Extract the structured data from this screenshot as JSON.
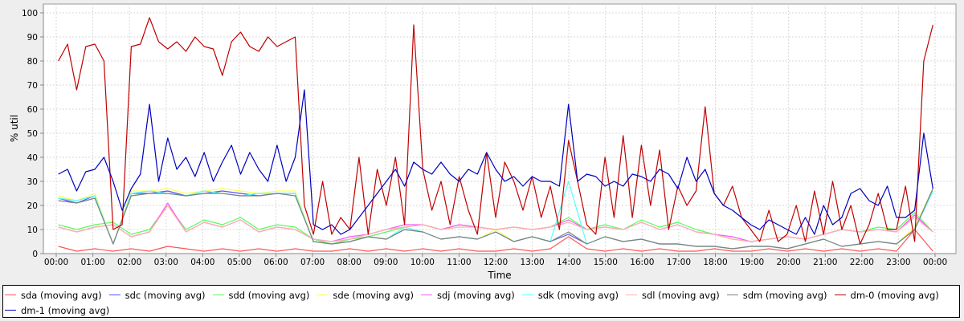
{
  "chart_data": {
    "type": "line",
    "title": "",
    "xlabel": "Time",
    "ylabel": "% util",
    "ylim": [
      0,
      100
    ],
    "yticks": [
      "0",
      "10",
      "20",
      "30",
      "40",
      "50",
      "60",
      "70",
      "80",
      "90",
      "100"
    ],
    "xticks": [
      "00:00",
      "01:00",
      "02:00",
      "03:00",
      "04:00",
      "05:00",
      "06:00",
      "07:00",
      "08:00",
      "09:00",
      "10:00",
      "11:00",
      "12:00",
      "13:00",
      "14:00",
      "15:00",
      "16:00",
      "17:00",
      "18:00",
      "19:00",
      "20:00",
      "21:00",
      "22:00",
      "23:00",
      "00:00"
    ],
    "x_range_hours": [
      0,
      24
    ],
    "grid": true,
    "legend_position": "bottom",
    "series": [
      {
        "name": "sda (moving avg)",
        "color": "#ff5555",
        "values": [
          3,
          1,
          2,
          1,
          2,
          1,
          3,
          2,
          1,
          2,
          1,
          2,
          1,
          2,
          1,
          1,
          2,
          1,
          2,
          1,
          2,
          1,
          2,
          1,
          1,
          2,
          1,
          2,
          7,
          2,
          1,
          2,
          1,
          2,
          1,
          1,
          2,
          1,
          1,
          2,
          1,
          2,
          1,
          2,
          1,
          2,
          1,
          10,
          1
        ]
      },
      {
        "name": "sdc (moving avg)",
        "color": "#5555ff",
        "values": [
          23,
          21,
          24,
          4,
          25,
          25,
          26,
          24,
          25,
          26,
          25,
          24,
          25,
          25,
          5,
          4,
          5,
          7,
          6,
          10,
          9,
          6,
          7,
          6,
          9,
          5,
          7,
          5,
          8,
          4,
          7,
          5,
          6,
          4,
          4,
          3,
          3,
          2,
          3,
          3,
          2,
          4,
          6,
          3,
          4,
          5,
          4,
          10,
          26
        ]
      },
      {
        "name": "sdd (moving avg)",
        "color": "#55ff55",
        "values": [
          12,
          10,
          12,
          13,
          8,
          10,
          20,
          10,
          14,
          12,
          15,
          10,
          12,
          11,
          6,
          4,
          6,
          7,
          9,
          11,
          12,
          10,
          12,
          11,
          10,
          11,
          10,
          11,
          15,
          10,
          12,
          10,
          14,
          11,
          13,
          10,
          8,
          6,
          5,
          6,
          7,
          6,
          8,
          10,
          9,
          11,
          10,
          17,
          9
        ]
      },
      {
        "name": "sde (moving avg)",
        "color": "#ffff55",
        "values": [
          24,
          22,
          25,
          4,
          26,
          26,
          27,
          25,
          26,
          27,
          26,
          25,
          26,
          26,
          5,
          4,
          5,
          7,
          6,
          11,
          9,
          6,
          7,
          6,
          10,
          5,
          7,
          5,
          9,
          4,
          7,
          5,
          6,
          4,
          4,
          3,
          3,
          2,
          3,
          3,
          2,
          4,
          6,
          3,
          4,
          5,
          4,
          11,
          27
        ]
      },
      {
        "name": "sdj (moving avg)",
        "color": "#ff55ff",
        "values": [
          11,
          9,
          11,
          12,
          7,
          9,
          21,
          9,
          13,
          11,
          14,
          9,
          11,
          10,
          6,
          5,
          7,
          8,
          10,
          12,
          12,
          10,
          12,
          11,
          10,
          11,
          10,
          11,
          14,
          10,
          11,
          10,
          13,
          10,
          12,
          9,
          8,
          7,
          5,
          6,
          7,
          6,
          8,
          10,
          9,
          10,
          9,
          16,
          9
        ]
      },
      {
        "name": "sdk (moving avg)",
        "color": "#55ffff",
        "values": [
          23,
          22,
          24,
          4,
          25,
          26,
          25,
          24,
          26,
          25,
          24,
          25,
          25,
          25,
          5,
          4,
          5,
          7,
          6,
          11,
          9,
          6,
          7,
          6,
          9,
          5,
          7,
          5,
          30,
          4,
          7,
          5,
          6,
          4,
          4,
          3,
          3,
          2,
          3,
          3,
          2,
          4,
          6,
          3,
          4,
          5,
          4,
          10,
          26
        ]
      },
      {
        "name": "sdl (moving avg)",
        "color": "#ffafaf",
        "values": [
          11,
          9,
          11,
          12,
          7,
          9,
          20,
          9,
          13,
          11,
          14,
          9,
          11,
          10,
          6,
          5,
          6,
          8,
          10,
          11,
          12,
          10,
          11,
          11,
          10,
          11,
          10,
          11,
          13,
          10,
          11,
          10,
          13,
          10,
          12,
          9,
          8,
          6,
          5,
          6,
          7,
          6,
          8,
          10,
          9,
          10,
          9,
          15,
          9
        ]
      },
      {
        "name": "sdm (moving avg)",
        "color": "#808080",
        "values": [
          22,
          21,
          23,
          4,
          24,
          25,
          25,
          24,
          25,
          25,
          24,
          24,
          25,
          24,
          5,
          4,
          5,
          7,
          6,
          10,
          9,
          6,
          7,
          6,
          9,
          5,
          7,
          5,
          9,
          4,
          7,
          5,
          6,
          4,
          4,
          3,
          3,
          2,
          3,
          3,
          2,
          4,
          6,
          3,
          4,
          5,
          4,
          10,
          27
        ]
      },
      {
        "name": "dm-0 (moving avg)",
        "color": "#c00000",
        "values": [
          80,
          87,
          68,
          86,
          87,
          80,
          10,
          12,
          86,
          87,
          98,
          88,
          85,
          88,
          84,
          90,
          86,
          85,
          74,
          88,
          92,
          86,
          84,
          90,
          86,
          88,
          90,
          20,
          8,
          30,
          8,
          15,
          10,
          40,
          8,
          35,
          20,
          40,
          12,
          95,
          35,
          18,
          30,
          12,
          32,
          18,
          8,
          42,
          15,
          38,
          30,
          18,
          32,
          15,
          28,
          10,
          47,
          30,
          12,
          8,
          40,
          15,
          49,
          15,
          45,
          20,
          43,
          10,
          28,
          20,
          26,
          61,
          25,
          20,
          28,
          15,
          10,
          5,
          18,
          5,
          8,
          20,
          5,
          26,
          8,
          30,
          10,
          20,
          4,
          12,
          25,
          10,
          10,
          28,
          5,
          80,
          95
        ]
      },
      {
        "name": "dm-1 (moving avg)",
        "color": "#0000c0",
        "values": [
          33,
          35,
          26,
          34,
          35,
          40,
          30,
          18,
          27,
          33,
          62,
          30,
          48,
          35,
          40,
          32,
          42,
          30,
          38,
          45,
          33,
          42,
          35,
          30,
          45,
          30,
          40,
          68,
          12,
          10,
          12,
          8,
          10,
          15,
          20,
          25,
          30,
          35,
          28,
          38,
          35,
          33,
          38,
          33,
          30,
          35,
          33,
          42,
          35,
          30,
          32,
          28,
          32,
          30,
          30,
          28,
          62,
          30,
          33,
          32,
          28,
          30,
          28,
          33,
          32,
          30,
          35,
          33,
          27,
          40,
          30,
          35,
          25,
          20,
          18,
          15,
          12,
          10,
          14,
          12,
          10,
          8,
          15,
          8,
          20,
          12,
          15,
          25,
          27,
          22,
          20,
          28,
          15,
          15,
          18,
          50,
          27
        ]
      }
    ]
  }
}
